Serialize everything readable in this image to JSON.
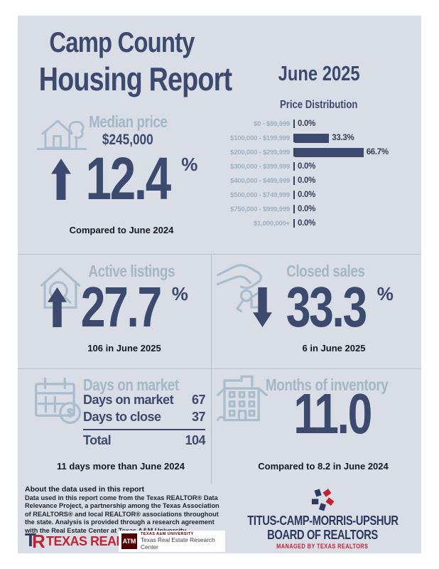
{
  "header": {
    "title_line1": "Camp County",
    "title_line2": "Housing Report",
    "date": "June 2025"
  },
  "chart_data": {
    "type": "bar",
    "orientation": "horizontal",
    "title": "Price Distribution",
    "categories": [
      "$0 - $99,999",
      "$100,000 - $199,999",
      "$200,000 - $299,999",
      "$300,000 - $399,999",
      "$400,000 - $499,999",
      "$500,000 - $749,999",
      "$750,000 - $999,999",
      "$1,000,000+"
    ],
    "values": [
      0.0,
      33.3,
      66.7,
      0.0,
      0.0,
      0.0,
      0.0,
      0.0
    ],
    "value_labels": [
      "0.0%",
      "33.3%",
      "66.7%",
      "0.0%",
      "0.0%",
      "0.0%",
      "0.0%",
      "0.0%"
    ],
    "xlim": [
      0,
      100
    ],
    "bar_color": "#3b4a6e",
    "legend": "none",
    "grid": false
  },
  "median_price": {
    "heading": "Median price",
    "value": "$245,000",
    "change_pct": "12.4",
    "pct_sign": "%",
    "direction": "up",
    "compare_text": "Compared to June 2024"
  },
  "active_listings": {
    "heading": "Active listings",
    "change_pct": "27.7",
    "pct_sign": "%",
    "direction": "up",
    "detail": "106 in June 2025"
  },
  "closed_sales": {
    "heading": "Closed sales",
    "change_pct": "33.3",
    "pct_sign": "%",
    "direction": "down",
    "detail": "6 in June 2025"
  },
  "days_on_market": {
    "heading": "Days on market",
    "rows": [
      {
        "label": "Days on market",
        "value": "67"
      },
      {
        "label": "Days to close",
        "value": "37"
      }
    ],
    "total_label": "Total",
    "total_value": "104",
    "compare_text": "11 days more than June 2024"
  },
  "months_of_inventory": {
    "heading": "Months of inventory",
    "value": "11.0",
    "compare_text": "Compared to 8.2 in June 2024"
  },
  "footer": {
    "about_heading": "About the data used in this report",
    "about_body": "Data used in this report come from the Texas REALTOR® Data Relevance Project, a partnership among the Texas Association of REALTORS® and local REALTOR® associations throughout the state. Analysis is provided through a research agreement with the Real Estate Center at Texas A&M University.",
    "texas_realtors_logo": "TEXAS REALTORS",
    "tamu_monogram": "ATM",
    "tamu_small": "TEXAS A&M UNIVERSITY",
    "tamu_name": "Texas Real Estate Research Center",
    "board_line1": "TITUS-CAMP-MORRIS-UPSHUR",
    "board_line2": "BOARD OF REALTORS",
    "board_line3": "MANAGED BY TEXAS REALTORS"
  },
  "colors": {
    "panel_bg": "#d8dde6",
    "navy": "#3b4a6e",
    "light_slate": "#a3b7c7",
    "red": "#c22333",
    "maroon": "#500000",
    "divider": "#b7c1cd"
  }
}
